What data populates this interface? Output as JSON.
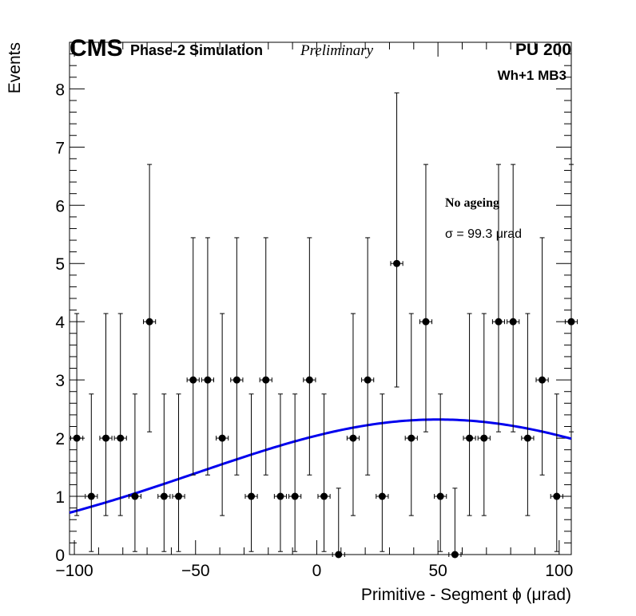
{
  "header": {
    "experiment": "CMS",
    "simulation": "Phase-2 Simulation",
    "status": "Preliminary",
    "pileup": "PU 200"
  },
  "chamber_label": "Wh+1 MB3",
  "annotation": {
    "condition": "No ageing",
    "sigma_text": "σ = 99.3 μrad"
  },
  "chart_data": {
    "type": "scatter",
    "title": "",
    "xlabel": "Primitive - Segment ϕ (μrad)",
    "ylabel": "Events",
    "xlim": [
      -102,
      105
    ],
    "ylim": [
      0,
      8.8
    ],
    "xticks": [
      -100,
      -50,
      0,
      50,
      100
    ],
    "xtick_labels": [
      "−100",
      "−50",
      "0",
      "50",
      "100"
    ],
    "yticks": [
      0,
      1,
      2,
      3,
      4,
      5,
      6,
      7,
      8
    ],
    "ytick_labels": [
      "0",
      "1",
      "2",
      "3",
      "4",
      "5",
      "6",
      "7",
      "8"
    ],
    "bin_half_width": 2.5,
    "series": [
      {
        "name": "Events",
        "x": [
          -99,
          -93,
          -87,
          -81,
          -75,
          -69,
          -63,
          -57,
          -51,
          -45,
          -39,
          -33,
          -27,
          -21,
          -15,
          -9,
          -3,
          3,
          9,
          15,
          21,
          27,
          33,
          39,
          45,
          51,
          57,
          63,
          69,
          75,
          81,
          87,
          93,
          99,
          105
        ],
        "y": [
          2,
          1,
          2,
          2,
          1,
          4,
          1,
          1,
          3,
          3,
          2,
          3,
          1,
          3,
          1,
          1,
          3,
          1,
          0,
          2,
          3,
          1,
          5,
          2,
          4,
          1,
          0,
          2,
          2,
          4,
          4,
          2,
          3,
          1,
          4
        ]
      }
    ],
    "fit": {
      "name": "Gaussian fit",
      "amplitude": 2.32,
      "mean": 50,
      "sigma": 99.3,
      "color": "#0000ee"
    }
  },
  "colors": {
    "markers": "#000000",
    "fit_line": "#0000ee",
    "frame": "#000000"
  }
}
